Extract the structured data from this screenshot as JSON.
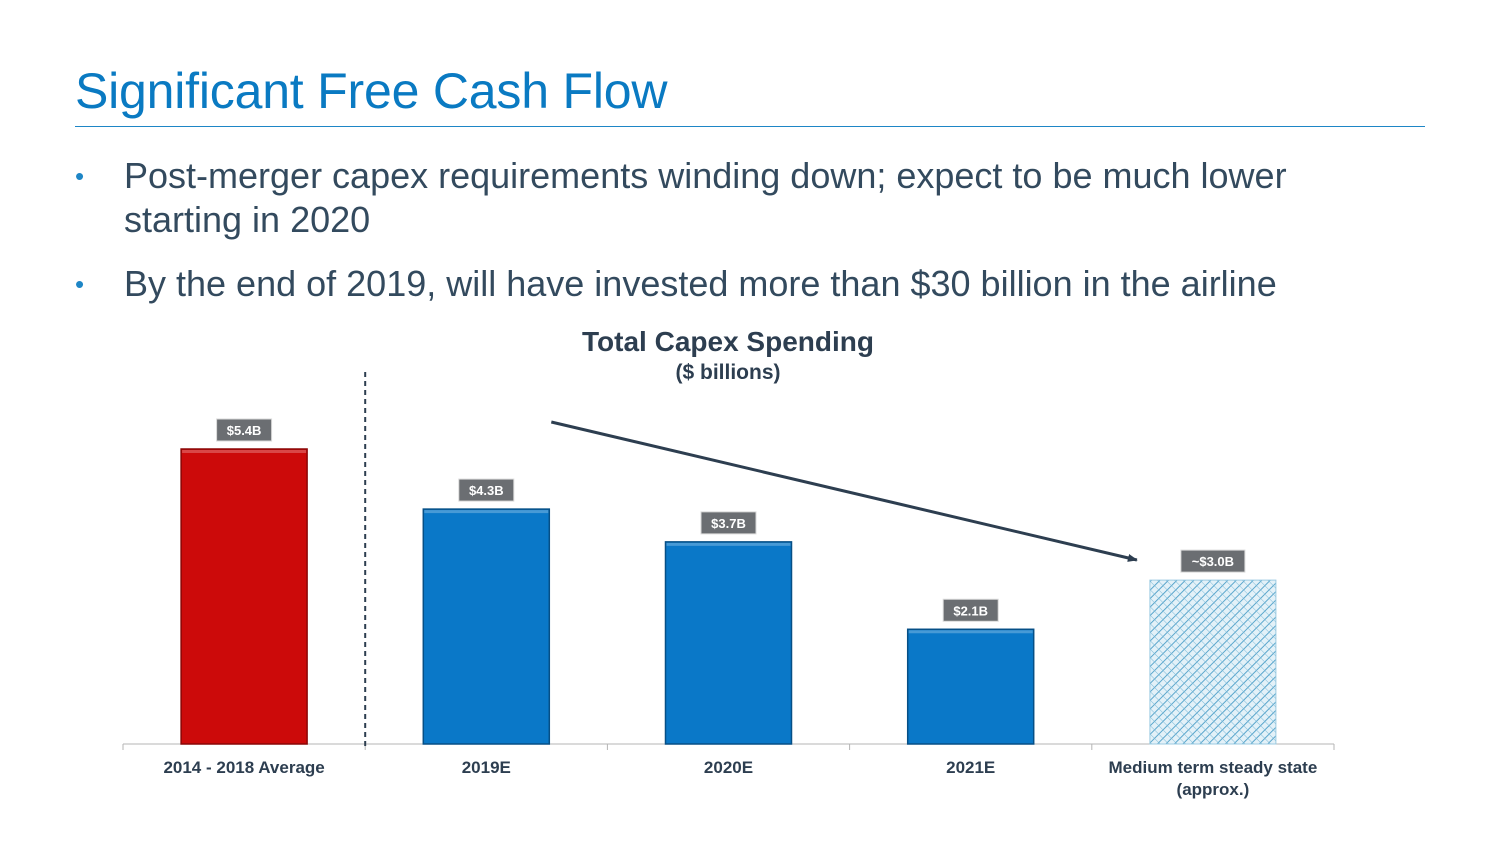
{
  "slide": {
    "title": "Significant Free Cash Flow",
    "bullets": [
      "Post-merger capex requirements winding down; expect to be much lower starting in 2020",
      "By the end of 2019, will have invested more than $30 billion in the airline"
    ]
  },
  "colors": {
    "title": "#0a7ac2",
    "actual_bar": "#cc0a0a",
    "estimate_bar": "#0a78c8",
    "steady_state_bar": "#bfe0f0",
    "data_label_bg": "#6b6e72",
    "text": "#2d3e50"
  },
  "chart_data": {
    "type": "bar",
    "title": "Total Capex Spending",
    "subtitle": "($ billions)",
    "categories": [
      "2014 - 2018 Average",
      "2019E",
      "2020E",
      "2021E",
      "Medium term steady state (approx.)"
    ],
    "category_lines": [
      [
        "2014 - 2018 Average"
      ],
      [
        "2019E"
      ],
      [
        "2020E"
      ],
      [
        "2021E"
      ],
      [
        "Medium term steady state",
        "(approx.)"
      ]
    ],
    "values": [
      5.4,
      4.3,
      3.7,
      2.1,
      3.0
    ],
    "data_labels": [
      "$5.4B",
      "$4.3B",
      "$3.7B",
      "$2.1B",
      "~$3.0B"
    ],
    "bar_styles": [
      "actual",
      "estimate",
      "estimate",
      "estimate",
      "hatched"
    ],
    "ylim": [
      0,
      5.4
    ],
    "xlabel": "",
    "ylabel": "",
    "grid": false,
    "annotations": [
      "divider after first category",
      "downward trend arrow from 2019E toward steady state"
    ]
  }
}
